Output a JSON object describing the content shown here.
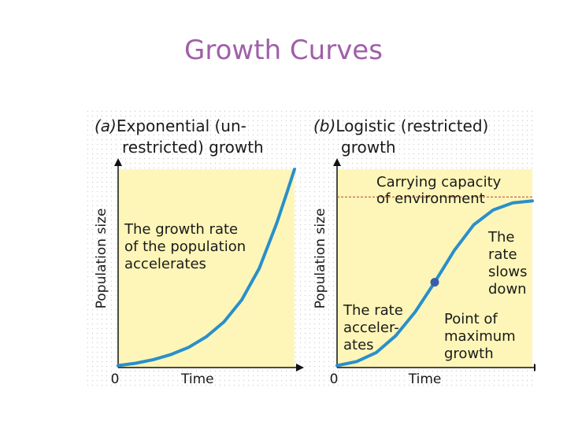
{
  "slide": {
    "title": "Growth Curves"
  },
  "colors": {
    "title": "#a05fa8",
    "panel_background": "#fdf6b8",
    "curve": "#2a8fcb",
    "carrying_capacity_line": "#c23b3b",
    "point_marker": "#3b5ea8",
    "grid_dots": "#d0d0d0"
  },
  "chart_data": [
    {
      "type": "line",
      "panel_letter": "(a)",
      "title_lines": [
        "Exponential (un-",
        "restricted) growth"
      ],
      "xlabel": "Time",
      "ylabel": "Population size",
      "x_origin_label": "0",
      "xlim": [
        0,
        10
      ],
      "ylim": [
        0,
        10
      ],
      "annotation_lines": [
        "The growth rate",
        "of the population",
        "accelerates"
      ],
      "x": [
        0,
        1,
        2,
        3,
        4,
        5,
        6,
        7,
        8,
        9,
        9.6,
        10
      ],
      "y": [
        0.1,
        0.22,
        0.4,
        0.66,
        1.02,
        1.55,
        2.3,
        3.4,
        5.0,
        7.3,
        8.9,
        10.0
      ]
    },
    {
      "type": "line",
      "panel_letter": "(b)",
      "title_lines": [
        "Logistic (restricted)",
        "growth"
      ],
      "xlabel": "Time",
      "ylabel": "Population size",
      "x_origin_label": "0",
      "xlim": [
        0,
        10
      ],
      "ylim": [
        0,
        10
      ],
      "carrying_capacity": {
        "value": 8.6,
        "label_lines": [
          "Carrying capacity",
          "of environment"
        ]
      },
      "annotations": {
        "left_lines": [
          "The rate",
          "acceler-",
          "ates"
        ],
        "right_lines": [
          "The",
          "rate",
          "slows",
          "down"
        ],
        "point_lines": [
          "Point of",
          "maximum",
          "growth"
        ]
      },
      "inflection_point": {
        "x": 5,
        "y": 4.3
      },
      "x": [
        0,
        1,
        2,
        3,
        4,
        5,
        6,
        7,
        8,
        9,
        10
      ],
      "y": [
        0.1,
        0.3,
        0.75,
        1.6,
        2.8,
        4.3,
        5.9,
        7.2,
        7.95,
        8.3,
        8.4
      ]
    }
  ]
}
